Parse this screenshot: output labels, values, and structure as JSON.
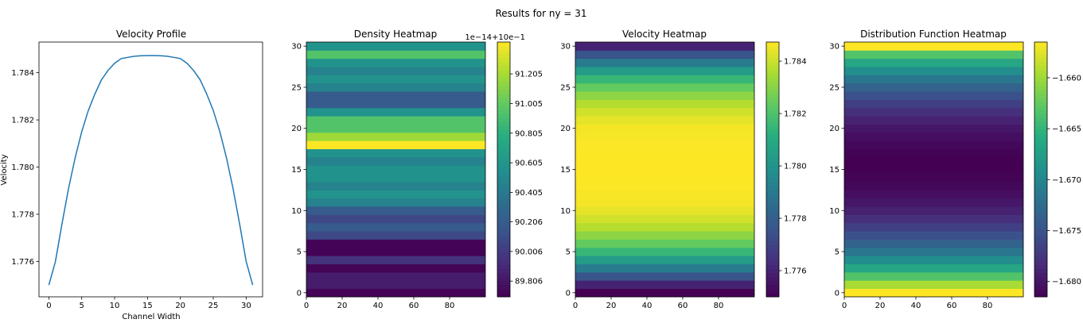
{
  "figure": {
    "title": "Results for ny = 31"
  },
  "colors": {
    "line": "#1f77b4",
    "colormap": "viridis"
  },
  "chart_data": [
    {
      "type": "line",
      "title": "Velocity Profile",
      "xlabel": "Channel Width",
      "ylabel": "Velocity",
      "xlim": [
        -1.5,
        32.5
      ],
      "ylim": [
        1.7745,
        1.7853
      ],
      "xticks": [
        "0",
        "5",
        "10",
        "15",
        "20",
        "25",
        "30"
      ],
      "yticks": [
        "1.776",
        "1.778",
        "1.780",
        "1.782",
        "1.784"
      ],
      "x": [
        0,
        1,
        2,
        3,
        4,
        5,
        6,
        7,
        8,
        9,
        10,
        11,
        12,
        13,
        14,
        15,
        16,
        17,
        18,
        19,
        20,
        21,
        22,
        23,
        24,
        25,
        26,
        27,
        28,
        29,
        30,
        31
      ],
      "y": [
        1.775,
        1.776,
        1.7776,
        1.7791,
        1.7804,
        1.7815,
        1.7824,
        1.7831,
        1.7837,
        1.7841,
        1.7844,
        1.7846,
        1.78465,
        1.7847,
        1.78472,
        1.78473,
        1.78473,
        1.78472,
        1.7847,
        1.78465,
        1.7846,
        1.7844,
        1.7841,
        1.7837,
        1.7831,
        1.7824,
        1.7815,
        1.7804,
        1.7791,
        1.7776,
        1.776,
        1.775
      ]
    },
    {
      "type": "heatmap",
      "title": "Density Heatmap",
      "offset_label": "1e−14+10e−1",
      "xlim": [
        0,
        100
      ],
      "ylim": [
        -0.5,
        30.5
      ],
      "xticks": [
        "0",
        "20",
        "40",
        "60",
        "80"
      ],
      "yticks": [
        "0",
        "5",
        "10",
        "15",
        "20",
        "25",
        "30"
      ],
      "colorbar_ticks": [
        {
          "label": "91.205",
          "value": 91.205
        },
        {
          "label": "91.005",
          "value": 91.005
        },
        {
          "label": "90.805",
          "value": 90.805
        },
        {
          "label": "90.605",
          "value": 90.605
        },
        {
          "label": "90.405",
          "value": 90.405
        },
        {
          "label": "90.206",
          "value": 90.206
        },
        {
          "label": "90.006",
          "value": 90.006
        },
        {
          "label": "89.806",
          "value": 89.806
        }
      ],
      "vmin": 89.7,
      "vmax": 91.42,
      "rows": [
        89.71,
        89.84,
        89.84,
        89.72,
        89.96,
        89.71,
        89.71,
        90.08,
        90.2,
        90.08,
        90.2,
        90.47,
        90.58,
        90.47,
        90.58,
        90.58,
        90.47,
        90.58,
        91.42,
        91.18,
        90.95,
        90.95,
        90.58,
        90.2,
        90.2,
        90.47,
        90.58,
        90.47,
        90.58,
        90.95,
        90.58
      ]
    },
    {
      "type": "heatmap",
      "title": "Velocity Heatmap",
      "xlim": [
        0,
        100
      ],
      "ylim": [
        -0.5,
        30.5
      ],
      "xticks": [
        "0",
        "20",
        "40",
        "60",
        "80"
      ],
      "yticks": [
        "0",
        "5",
        "10",
        "15",
        "20",
        "25",
        "30"
      ],
      "colorbar_ticks": [
        {
          "label": "1.784",
          "value": 1.784
        },
        {
          "label": "1.782",
          "value": 1.782
        },
        {
          "label": "1.780",
          "value": 1.78
        },
        {
          "label": "1.778",
          "value": 1.778
        },
        {
          "label": "1.776",
          "value": 1.776
        }
      ],
      "vmin": 1.775,
      "vmax": 1.78473,
      "rows": [
        1.775,
        1.776,
        1.7776,
        1.7791,
        1.7804,
        1.7815,
        1.7824,
        1.7831,
        1.7837,
        1.7841,
        1.7844,
        1.7846,
        1.78465,
        1.7847,
        1.78472,
        1.78473,
        1.78473,
        1.78472,
        1.7847,
        1.78465,
        1.7846,
        1.7844,
        1.7841,
        1.7837,
        1.7831,
        1.7824,
        1.7815,
        1.7804,
        1.7791,
        1.7776,
        1.776
      ]
    },
    {
      "type": "heatmap",
      "title": "Distribution Function Heatmap",
      "xlim": [
        0,
        100
      ],
      "ylim": [
        -0.5,
        30.5
      ],
      "xticks": [
        "0",
        "20",
        "40",
        "60",
        "80"
      ],
      "yticks": [
        "0",
        "5",
        "10",
        "15",
        "20",
        "25",
        "30"
      ],
      "colorbar_ticks": [
        {
          "label": "−1.660",
          "value": -1.66
        },
        {
          "label": "−1.665",
          "value": -1.665
        },
        {
          "label": "−1.670",
          "value": -1.67
        },
        {
          "label": "−1.675",
          "value": -1.675
        },
        {
          "label": "−1.680",
          "value": -1.68
        }
      ],
      "vmin": -1.6815,
      "vmax": -1.6565,
      "rows": [
        -1.6565,
        -1.6596,
        -1.6633,
        -1.6665,
        -1.6692,
        -1.6715,
        -1.6735,
        -1.6752,
        -1.6767,
        -1.6779,
        -1.679,
        -1.6798,
        -1.6805,
        -1.681,
        -1.6813,
        -1.6815,
        -1.6815,
        -1.6813,
        -1.681,
        -1.6805,
        -1.6798,
        -1.679,
        -1.6779,
        -1.6767,
        -1.6752,
        -1.6735,
        -1.6715,
        -1.6692,
        -1.6665,
        -1.6633,
        -1.6565
      ]
    }
  ]
}
